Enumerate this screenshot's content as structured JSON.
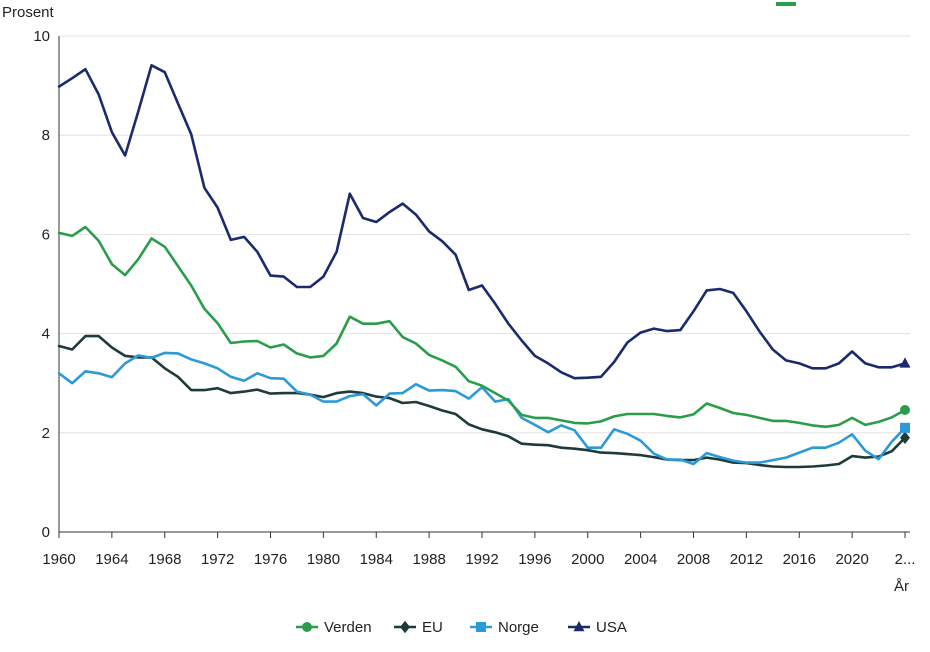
{
  "chart_data": {
    "type": "line",
    "ylabel": "Prosent",
    "xlabel": "År",
    "ylim": [
      0,
      10
    ],
    "y_ticks": [
      "0",
      "2",
      "4",
      "6",
      "8",
      "10"
    ],
    "x_tick_years": [
      1960,
      1964,
      1968,
      1972,
      1976,
      1980,
      1984,
      1988,
      1992,
      1996,
      2000,
      2004,
      2008,
      2012,
      2016,
      2020,
      2023
    ],
    "x_tick_labels": [
      "1960",
      "1964",
      "1968",
      "1972",
      "1976",
      "1980",
      "1984",
      "1988",
      "1992",
      "1996",
      "2000",
      "2004",
      "2008",
      "2012",
      "2016",
      "2020",
      "2..."
    ],
    "grid": "horizontal",
    "legend_position": "bottom",
    "x": [
      1960,
      1961,
      1962,
      1963,
      1964,
      1965,
      1966,
      1967,
      1968,
      1969,
      1970,
      1971,
      1972,
      1973,
      1974,
      1975,
      1976,
      1977,
      1978,
      1979,
      1980,
      1981,
      1982,
      1983,
      1984,
      1985,
      1986,
      1987,
      1988,
      1989,
      1990,
      1991,
      1992,
      1993,
      1994,
      1995,
      1996,
      1997,
      1998,
      1999,
      2000,
      2001,
      2002,
      2003,
      2004,
      2005,
      2006,
      2007,
      2008,
      2009,
      2010,
      2011,
      2012,
      2013,
      2014,
      2015,
      2016,
      2017,
      2018,
      2019,
      2020,
      2021,
      2022,
      2023
    ],
    "series": [
      {
        "name": "Verden",
        "color": "#2a9d4a",
        "marker": "circle",
        "values": [
          6.03,
          5.97,
          6.15,
          5.87,
          5.4,
          5.18,
          5.5,
          5.92,
          5.75,
          5.36,
          4.97,
          4.5,
          4.21,
          3.81,
          3.84,
          3.85,
          3.72,
          3.78,
          3.6,
          3.52,
          3.55,
          3.8,
          4.34,
          4.2,
          4.2,
          4.25,
          3.93,
          3.8,
          3.57,
          3.46,
          3.33,
          3.04,
          2.95,
          2.8,
          2.65,
          2.36,
          2.3,
          2.3,
          2.25,
          2.2,
          2.19,
          2.23,
          2.33,
          2.38,
          2.38,
          2.38,
          2.34,
          2.31,
          2.37,
          2.59,
          2.5,
          2.4,
          2.36,
          2.3,
          2.24,
          2.24,
          2.2,
          2.15,
          2.12,
          2.16,
          2.3,
          2.16,
          2.22,
          2.31
        ]
      },
      {
        "name": "EU",
        "color": "#1f3a3a",
        "marker": "diamond",
        "values": [
          3.75,
          3.68,
          3.95,
          3.95,
          3.72,
          3.55,
          3.52,
          3.52,
          3.3,
          3.13,
          2.86,
          2.86,
          2.9,
          2.8,
          2.83,
          2.87,
          2.79,
          2.8,
          2.8,
          2.77,
          2.72,
          2.8,
          2.83,
          2.8,
          2.73,
          2.7,
          2.6,
          2.62,
          2.54,
          2.45,
          2.38,
          2.17,
          2.07,
          2.01,
          1.93,
          1.78,
          1.76,
          1.75,
          1.7,
          1.68,
          1.65,
          1.6,
          1.59,
          1.57,
          1.55,
          1.51,
          1.46,
          1.45,
          1.45,
          1.5,
          1.46,
          1.4,
          1.39,
          1.35,
          1.32,
          1.31,
          1.31,
          1.32,
          1.34,
          1.37,
          1.53,
          1.5,
          1.52,
          1.63
        ]
      },
      {
        "name": "Norge",
        "color": "#2b9ad8",
        "marker": "square",
        "values": [
          3.2,
          3.0,
          3.24,
          3.2,
          3.12,
          3.4,
          3.56,
          3.51,
          3.61,
          3.6,
          3.48,
          3.4,
          3.3,
          3.13,
          3.05,
          3.2,
          3.1,
          3.09,
          2.83,
          2.77,
          2.63,
          2.63,
          2.74,
          2.78,
          2.55,
          2.79,
          2.8,
          2.98,
          2.85,
          2.86,
          2.84,
          2.69,
          2.92,
          2.63,
          2.68,
          2.3,
          2.16,
          2.01,
          2.15,
          2.05,
          1.7,
          1.7,
          2.07,
          1.98,
          1.84,
          1.58,
          1.46,
          1.46,
          1.37,
          1.59,
          1.51,
          1.44,
          1.4,
          1.4,
          1.45,
          1.5,
          1.6,
          1.7,
          1.7,
          1.8,
          1.97,
          1.64,
          1.47,
          1.82
        ]
      },
      {
        "name": "USA",
        "color": "#1a2a6c",
        "marker": "triangle",
        "values": [
          8.98,
          9.15,
          9.33,
          8.82,
          8.06,
          7.59,
          8.48,
          9.41,
          9.27,
          8.64,
          8.02,
          6.94,
          6.54,
          5.89,
          5.95,
          5.65,
          5.17,
          5.15,
          4.94,
          4.94,
          5.15,
          5.65,
          6.82,
          6.33,
          6.25,
          6.45,
          6.62,
          6.4,
          6.06,
          5.86,
          5.59,
          4.88,
          4.97,
          4.6,
          4.2,
          3.86,
          3.55,
          3.4,
          3.22,
          3.1,
          3.11,
          3.13,
          3.43,
          3.82,
          4.02,
          4.1,
          4.05,
          4.07,
          4.45,
          4.87,
          4.9,
          4.82,
          4.45,
          4.04,
          3.68,
          3.46,
          3.4,
          3.3,
          3.3,
          3.4,
          3.64,
          3.4,
          3.32,
          3.32
        ]
      }
    ],
    "end_markers": {
      "x": 2024,
      "values": {
        "Verden": 2.46,
        "EU": 1.9,
        "Norge": 2.1,
        "USA": 3.4
      }
    }
  }
}
